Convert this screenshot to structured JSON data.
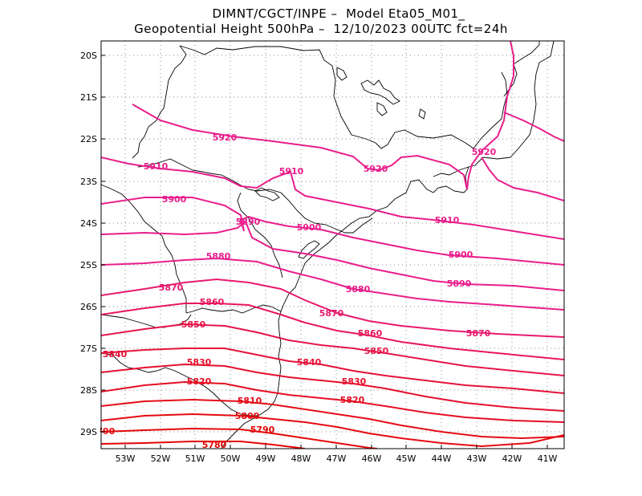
{
  "header": {
    "line1": "DIMNT/CGCT/INPE –  Model Eta05_M01_",
    "line2": "Geopotential Height 500hPa –  12/10/2023 00UTC fct=24h"
  },
  "map": {
    "lon_range": [
      -53.6,
      -40.5
    ],
    "lat_range": [
      -29.4,
      -19.7
    ],
    "grid": "dotted",
    "x_ticks": [
      "53W",
      "52W",
      "51W",
      "50W",
      "49W",
      "48W",
      "47W",
      "46W",
      "45W",
      "44W",
      "43W",
      "42W",
      "41W"
    ],
    "x_tick_values": [
      -53,
      -52,
      -51,
      -50,
      -49,
      -48,
      -47,
      -46,
      -45,
      -44,
      -43,
      -42,
      -41
    ],
    "y_ticks": [
      "20S",
      "21S",
      "22S",
      "23S",
      "24S",
      "25S",
      "26S",
      "27S",
      "28S",
      "29S"
    ],
    "y_tick_values": [
      -20,
      -21,
      -22,
      -23,
      -24,
      -25,
      -26,
      -27,
      -28,
      -29
    ],
    "contour_labels": [
      "5920",
      "5920",
      "5920",
      "5910",
      "5910",
      "5910",
      "5900",
      "5900",
      "5900",
      "5890",
      "5890",
      "5880",
      "5880",
      "5870",
      "5870",
      "5870",
      "5860",
      "5860",
      "5850",
      "5850",
      "5840",
      "5840",
      "5830",
      "5830",
      "5820",
      "5820",
      "5810",
      "5800",
      "5790",
      "5790",
      "5780"
    ]
  }
}
